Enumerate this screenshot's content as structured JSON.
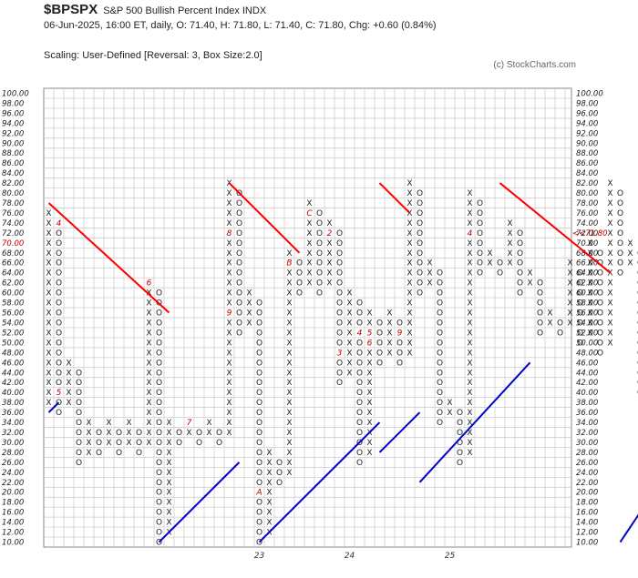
{
  "header": {
    "symbol": "$BPSPX",
    "name": "S&P 500 Bullish Percent Index  INDX",
    "ohlc": "06-Jun-2025, 16:00 ET, daily, O: 71.40, H: 71.80, L: 71.40, C: 71.80, Chg: +0.60 (0.84%)",
    "scaling": "Scaling: User-Defined [Reversal: 3, Box Size:2.0]",
    "copyright": "(c) StockCharts.com"
  },
  "colors": {
    "x": "#222222",
    "o": "#222222",
    "grid": "#c8c8c8",
    "month": "#c00000",
    "resistance": "#ff0000",
    "support": "#0000cc",
    "last": "#c00000"
  },
  "chart_data": {
    "type": "point-and-figure",
    "box_size": 2.0,
    "reversal": 3,
    "ylim": [
      10,
      100
    ],
    "y_ticks": [
      "100.00",
      "98.00",
      "96.00",
      "94.00",
      "92.00",
      "90.00",
      "88.00",
      "86.00",
      "84.00",
      "82.00",
      "80.00",
      "78.00",
      "76.00",
      "74.00",
      "72.00",
      "70.00",
      "68.00",
      "66.00",
      "64.00",
      "62.00",
      "60.00",
      "58.00",
      "56.00",
      "54.00",
      "52.00",
      "50.00",
      "48.00",
      "46.00",
      "44.00",
      "42.00",
      "40.00",
      "38.00",
      "36.00",
      "34.00",
      "32.00",
      "30.00",
      "28.00",
      "26.00",
      "24.00",
      "22.00",
      "20.00",
      "18.00",
      "16.00",
      "14.00",
      "12.00",
      "10.00"
    ],
    "left_highlight": "70.00",
    "last_value_label": "<<71.80",
    "last_value": 71.8,
    "year_labels": [
      {
        "label": "23",
        "column": 21
      },
      {
        "label": "24",
        "column": 30
      },
      {
        "label": "25",
        "column": 40
      }
    ],
    "columns": [
      {
        "type": "X",
        "low": 38,
        "high": 76
      },
      {
        "type": "O",
        "low": 36,
        "high": 74
      },
      {
        "type": "X",
        "low": 38,
        "high": 46
      },
      {
        "type": "O",
        "low": 26,
        "high": 44
      },
      {
        "type": "X",
        "low": 28,
        "high": 34
      },
      {
        "type": "O",
        "low": 28,
        "high": 32
      },
      {
        "type": "X",
        "low": 30,
        "high": 34
      },
      {
        "type": "O",
        "low": 28,
        "high": 32
      },
      {
        "type": "X",
        "low": 30,
        "high": 34
      },
      {
        "type": "O",
        "low": 28,
        "high": 32
      },
      {
        "type": "X",
        "low": 30,
        "high": 62
      },
      {
        "type": "O",
        "low": 10,
        "high": 60
      },
      {
        "type": "X",
        "low": 12,
        "high": 34
      },
      {
        "type": "O",
        "low": 30,
        "high": 32
      },
      {
        "type": "X",
        "low": 32,
        "high": 34
      },
      {
        "type": "O",
        "low": 30,
        "high": 32
      },
      {
        "type": "X",
        "low": 32,
        "high": 34
      },
      {
        "type": "O",
        "low": 30,
        "high": 32
      },
      {
        "type": "X",
        "low": 32,
        "high": 82
      },
      {
        "type": "O",
        "low": 52,
        "high": 80
      },
      {
        "type": "X",
        "low": 54,
        "high": 60
      },
      {
        "type": "O",
        "low": 10,
        "high": 58
      },
      {
        "type": "X",
        "low": 12,
        "high": 28
      },
      {
        "type": "O",
        "low": 22,
        "high": 26
      },
      {
        "type": "X",
        "low": 24,
        "high": 68
      },
      {
        "type": "O",
        "low": 60,
        "high": 66
      },
      {
        "type": "X",
        "low": 62,
        "high": 78
      },
      {
        "type": "O",
        "low": 60,
        "high": 76
      },
      {
        "type": "X",
        "low": 62,
        "high": 74
      },
      {
        "type": "O",
        "low": 42,
        "high": 72
      },
      {
        "type": "X",
        "low": 44,
        "high": 60
      },
      {
        "type": "O",
        "low": 26,
        "high": 58
      },
      {
        "type": "X",
        "low": 28,
        "high": 56
      },
      {
        "type": "O",
        "low": 46,
        "high": 54
      },
      {
        "type": "X",
        "low": 48,
        "high": 56
      },
      {
        "type": "O",
        "low": 46,
        "high": 54
      },
      {
        "type": "X",
        "low": 48,
        "high": 82
      },
      {
        "type": "O",
        "low": 60,
        "high": 80
      },
      {
        "type": "X",
        "low": 62,
        "high": 66
      },
      {
        "type": "O",
        "low": 34,
        "high": 64
      },
      {
        "type": "X",
        "low": 36,
        "high": 38
      },
      {
        "type": "O",
        "low": 26,
        "high": 36
      },
      {
        "type": "X",
        "low": 28,
        "high": 80
      },
      {
        "type": "O",
        "low": 64,
        "high": 78
      },
      {
        "type": "X",
        "low": 66,
        "high": 68
      },
      {
        "type": "O",
        "low": 64,
        "high": 66
      },
      {
        "type": "X",
        "low": 66,
        "high": 74
      },
      {
        "type": "O",
        "low": 60,
        "high": 72
      },
      {
        "type": "X",
        "low": 62,
        "high": 64
      },
      {
        "type": "O",
        "low": 52,
        "high": 62
      },
      {
        "type": "X",
        "low": 54,
        "high": 56
      },
      {
        "type": "O",
        "low": 52,
        "high": 54
      },
      {
        "type": "X",
        "low": 54,
        "high": 66
      },
      {
        "type": "O",
        "low": 50,
        "high": 64
      },
      {
        "type": "X",
        "low": 52,
        "high": 70
      },
      {
        "type": "O",
        "low": 48,
        "high": 68
      },
      {
        "type": "X",
        "low": 50,
        "high": 82
      },
      {
        "type": "O",
        "low": 64,
        "high": 80
      },
      {
        "type": "X",
        "low": 66,
        "high": 70
      },
      {
        "type": "O",
        "low": 40,
        "high": 68
      },
      {
        "type": "X",
        "low": 42,
        "high": 48
      },
      {
        "type": "O",
        "low": 40,
        "high": 46
      },
      {
        "type": "X",
        "low": 42,
        "high": 48
      },
      {
        "type": "O",
        "low": 40,
        "high": 46
      },
      {
        "type": "X",
        "low": 42,
        "high": 60
      },
      {
        "type": "O",
        "low": 44,
        "high": 58
      },
      {
        "type": "X",
        "low": 46,
        "high": 54
      },
      {
        "type": "O",
        "low": 36,
        "high": 52
      },
      {
        "type": "X",
        "low": 38,
        "high": 48
      },
      {
        "type": "O",
        "low": 12,
        "high": 46
      },
      {
        "type": "X",
        "low": 14,
        "high": 76
      },
      {
        "type": "O",
        "low": 70,
        "high": 74
      }
    ],
    "month_marks": [
      {
        "col": 1,
        "value": 74,
        "label": "4"
      },
      {
        "col": 1,
        "value": 40,
        "label": "5"
      },
      {
        "col": 10,
        "value": 62,
        "label": "6"
      },
      {
        "col": 14,
        "value": 34,
        "label": "7"
      },
      {
        "col": 18,
        "value": 72,
        "label": "8"
      },
      {
        "col": 18,
        "value": 56,
        "label": "9"
      },
      {
        "col": 21,
        "value": 20,
        "label": "A"
      },
      {
        "col": 24,
        "value": 66,
        "label": "B"
      },
      {
        "col": 26,
        "value": 76,
        "label": "C"
      },
      {
        "col": 28,
        "value": 72,
        "label": "2"
      },
      {
        "col": 28,
        "value": 46,
        "label": "1"
      },
      {
        "col": 29,
        "value": 48,
        "label": "3"
      },
      {
        "col": 31,
        "value": 52,
        "label": "4"
      },
      {
        "col": 32,
        "value": 52,
        "label": "5"
      },
      {
        "col": 32,
        "value": 50,
        "label": "6"
      },
      {
        "col": 34,
        "value": 70,
        "label": "7"
      },
      {
        "col": 35,
        "value": 78,
        "label": "8"
      },
      {
        "col": 35,
        "value": 52,
        "label": "9"
      },
      {
        "col": 35,
        "value": 36,
        "label": "A"
      },
      {
        "col": 37,
        "value": 26,
        "label": "B"
      },
      {
        "col": 39,
        "value": 78,
        "label": "1"
      },
      {
        "col": 39,
        "value": 68,
        "label": "C"
      },
      {
        "col": 40,
        "value": 68,
        "label": "2"
      },
      {
        "col": 41,
        "value": 68,
        "label": "3"
      },
      {
        "col": 42,
        "value": 72,
        "label": "4"
      },
      {
        "col": 45,
        "value": 52,
        "label": "5"
      },
      {
        "col": 46,
        "value": 56,
        "label": "7"
      },
      {
        "col": 48,
        "value": 68,
        "label": "8"
      },
      {
        "col": 49,
        "value": 70,
        "label": "9"
      },
      {
        "col": 50,
        "value": 80,
        "label": "A"
      },
      {
        "col": 51,
        "value": 72,
        "label": "C"
      },
      {
        "col": 60,
        "value": 62,
        "label": "2"
      },
      {
        "col": 62,
        "value": 48,
        "label": "3"
      },
      {
        "col": 64,
        "value": 42,
        "label": "4"
      },
      {
        "col": 70,
        "value": 74,
        "label": "5"
      }
    ],
    "trendlines": [
      {
        "kind": "resistance",
        "from": {
          "col": 0,
          "value": 78
        },
        "to": {
          "col": 12,
          "value": 56
        }
      },
      {
        "kind": "resistance",
        "from": {
          "col": 18,
          "value": 82
        },
        "to": {
          "col": 25,
          "value": 68
        }
      },
      {
        "kind": "resistance",
        "from": {
          "col": 33,
          "value": 82
        },
        "to": {
          "col": 36,
          "value": 76
        }
      },
      {
        "kind": "resistance",
        "from": {
          "col": 45,
          "value": 82
        },
        "to": {
          "col": 56,
          "value": 64
        }
      },
      {
        "kind": "support",
        "from": {
          "col": 0,
          "value": 36
        },
        "to": {
          "col": 1,
          "value": 38
        }
      },
      {
        "kind": "support",
        "from": {
          "col": 11,
          "value": 10
        },
        "to": {
          "col": 19,
          "value": 26
        }
      },
      {
        "kind": "support",
        "from": {
          "col": 21,
          "value": 10
        },
        "to": {
          "col": 33,
          "value": 34
        }
      },
      {
        "kind": "support",
        "from": {
          "col": 33,
          "value": 28
        },
        "to": {
          "col": 37,
          "value": 36
        }
      },
      {
        "kind": "support",
        "from": {
          "col": 37,
          "value": 22
        },
        "to": {
          "col": 48,
          "value": 46
        }
      },
      {
        "kind": "support",
        "from": {
          "col": 57,
          "value": 10
        },
        "to": {
          "col": 59,
          "value": 16
        }
      }
    ]
  }
}
